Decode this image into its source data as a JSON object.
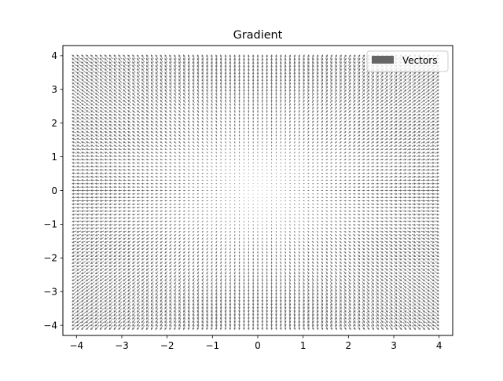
{
  "chart_data": {
    "type": "quiver",
    "title": "Gradient",
    "xlabel": "",
    "ylabel": "",
    "xlim": [
      -4.3,
      4.3
    ],
    "ylim": [
      -4.3,
      4.3
    ],
    "x_ticks": [
      -4,
      -3,
      -2,
      -1,
      0,
      1,
      2,
      3,
      4
    ],
    "y_ticks": [
      -4,
      -3,
      -2,
      -1,
      0,
      1,
      2,
      3,
      4
    ],
    "x_tick_labels": [
      "−4",
      "−3",
      "−2",
      "−1",
      "0",
      "1",
      "2",
      "3",
      "4"
    ],
    "y_tick_labels": [
      "−4",
      "−3",
      "−2",
      "−1",
      "0",
      "1",
      "2",
      "3",
      "4"
    ],
    "grid": false,
    "legend": {
      "position": "upper right",
      "entries": [
        "Vectors"
      ]
    },
    "series": [
      {
        "name": "Vectors",
        "color": "#666666",
        "field": "gradient of f(x, y) = (x² + y²) / 2",
        "grid_range": [
          -4,
          3.9
        ],
        "grid_step": 0.1
      }
    ]
  }
}
